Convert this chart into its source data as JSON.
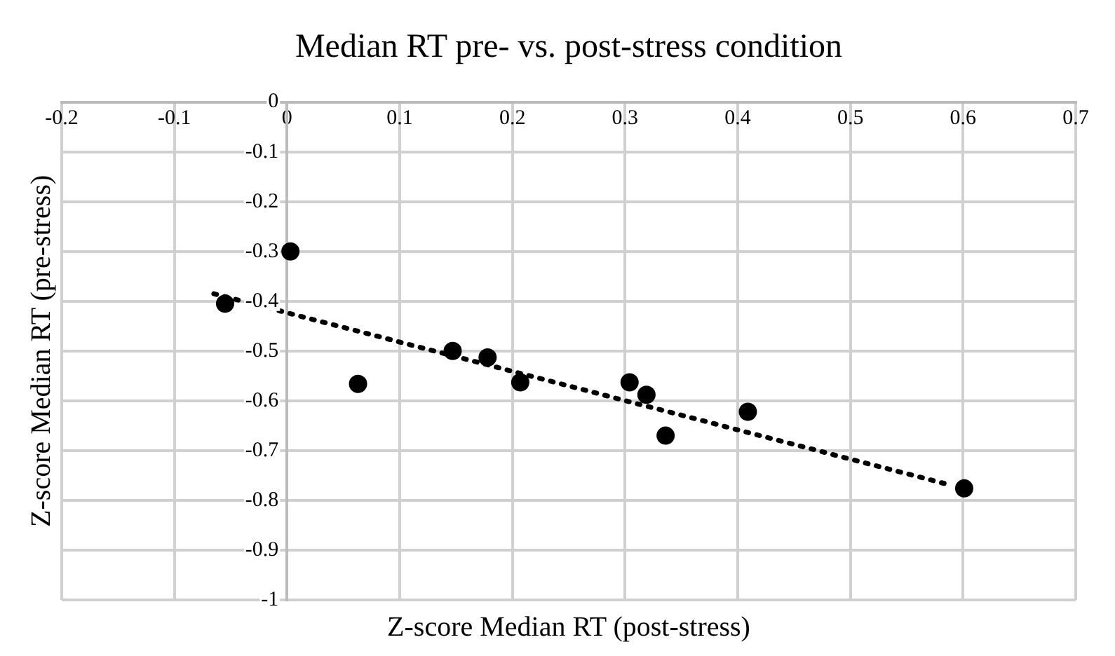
{
  "chart_data": {
    "type": "scatter",
    "title": "Median RT pre- vs. post-stress condition",
    "xlabel": "Z-score Median RT (post-stress)",
    "ylabel": "Z-score Median RT (pre-stress)",
    "series": [
      {
        "color": "#000000",
        "marker": "circle",
        "x": [
          0.003,
          -0.055,
          0.063,
          0.147,
          0.178,
          0.207,
          0.304,
          0.319,
          0.336,
          0.409,
          0.601
        ],
        "values": [
          -0.3,
          -0.405,
          -0.566,
          -0.5,
          -0.513,
          -0.563,
          -0.563,
          -0.588,
          -0.67,
          -0.622,
          -0.776
        ]
      },
      {
        "type": "line",
        "color": "#000000",
        "marker": "none",
        "line_style": "dotted",
        "x": [
          -0.065,
          0.59
        ],
        "values": [
          -0.385,
          -0.77
        ]
      }
    ],
    "xlim": [
      -0.2,
      0.7
    ],
    "xticks": [
      -0.2,
      -0.1,
      0,
      0.1,
      0.2,
      0.3,
      0.4,
      0.5,
      0.6,
      0.7
    ],
    "ylim": [
      -1,
      0
    ],
    "yticks": [
      0,
      -0.1,
      -0.2,
      -0.3,
      -0.4,
      -0.5,
      -0.6,
      -0.7,
      -0.8,
      -0.9,
      -1
    ],
    "grid": true,
    "legend": false
  }
}
